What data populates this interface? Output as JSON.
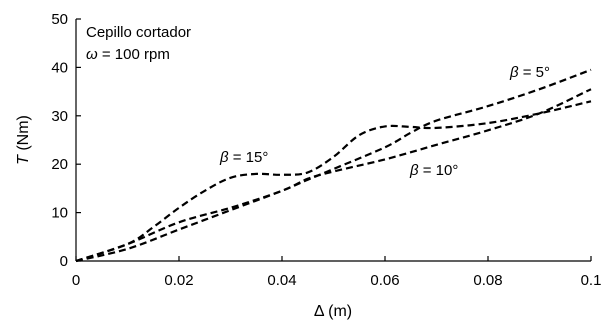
{
  "chart_data": {
    "type": "line",
    "xlabel": {
      "sym": "Δ",
      "unit": " (m)"
    },
    "ylabel": {
      "sym": "T",
      "unit": " (Nm)"
    },
    "xlim": [
      0,
      0.1
    ],
    "ylim": [
      0,
      50
    ],
    "xticks": [
      "0",
      "0.02",
      "0.04",
      "0.06",
      "0.08",
      "0.1"
    ],
    "yticks": [
      "0",
      "10",
      "20",
      "30",
      "40",
      "50"
    ],
    "grid": false,
    "annotation": {
      "line1": "Cepillo cortador",
      "line2_sym": "ω",
      "line2_text": " = 100 rpm"
    },
    "series": [
      {
        "name": "β = 5°",
        "label_sym": "β",
        "label_text": " = 5°",
        "x": [
          0,
          0.01,
          0.02,
          0.03,
          0.04,
          0.045,
          0.05,
          0.06,
          0.065,
          0.07,
          0.08,
          0.09,
          0.1
        ],
        "y": [
          0,
          2.5,
          6.5,
          10.5,
          14.5,
          16.8,
          19,
          23.5,
          26.5,
          29,
          32,
          35.5,
          39.5
        ]
      },
      {
        "name": "β = 10°",
        "label_sym": "β",
        "label_text": " = 10°",
        "x": [
          0,
          0.01,
          0.02,
          0.03,
          0.04,
          0.045,
          0.05,
          0.06,
          0.07,
          0.08,
          0.09,
          0.1
        ],
        "y": [
          0,
          3.5,
          8,
          11,
          14.5,
          17,
          18.5,
          21,
          24,
          27,
          30.5,
          35.5
        ]
      },
      {
        "name": "β = 15°",
        "label_sym": "β",
        "label_text": " = 15°",
        "x": [
          0,
          0.01,
          0.015,
          0.02,
          0.025,
          0.03,
          0.035,
          0.04,
          0.045,
          0.05,
          0.055,
          0.06,
          0.065,
          0.07,
          0.08,
          0.09,
          0.1
        ],
        "y": [
          0,
          3.5,
          7,
          11,
          14.5,
          17.2,
          18,
          17.8,
          18.3,
          21.5,
          26,
          27.8,
          27.7,
          27.5,
          28.5,
          30.5,
          33
        ]
      }
    ]
  }
}
